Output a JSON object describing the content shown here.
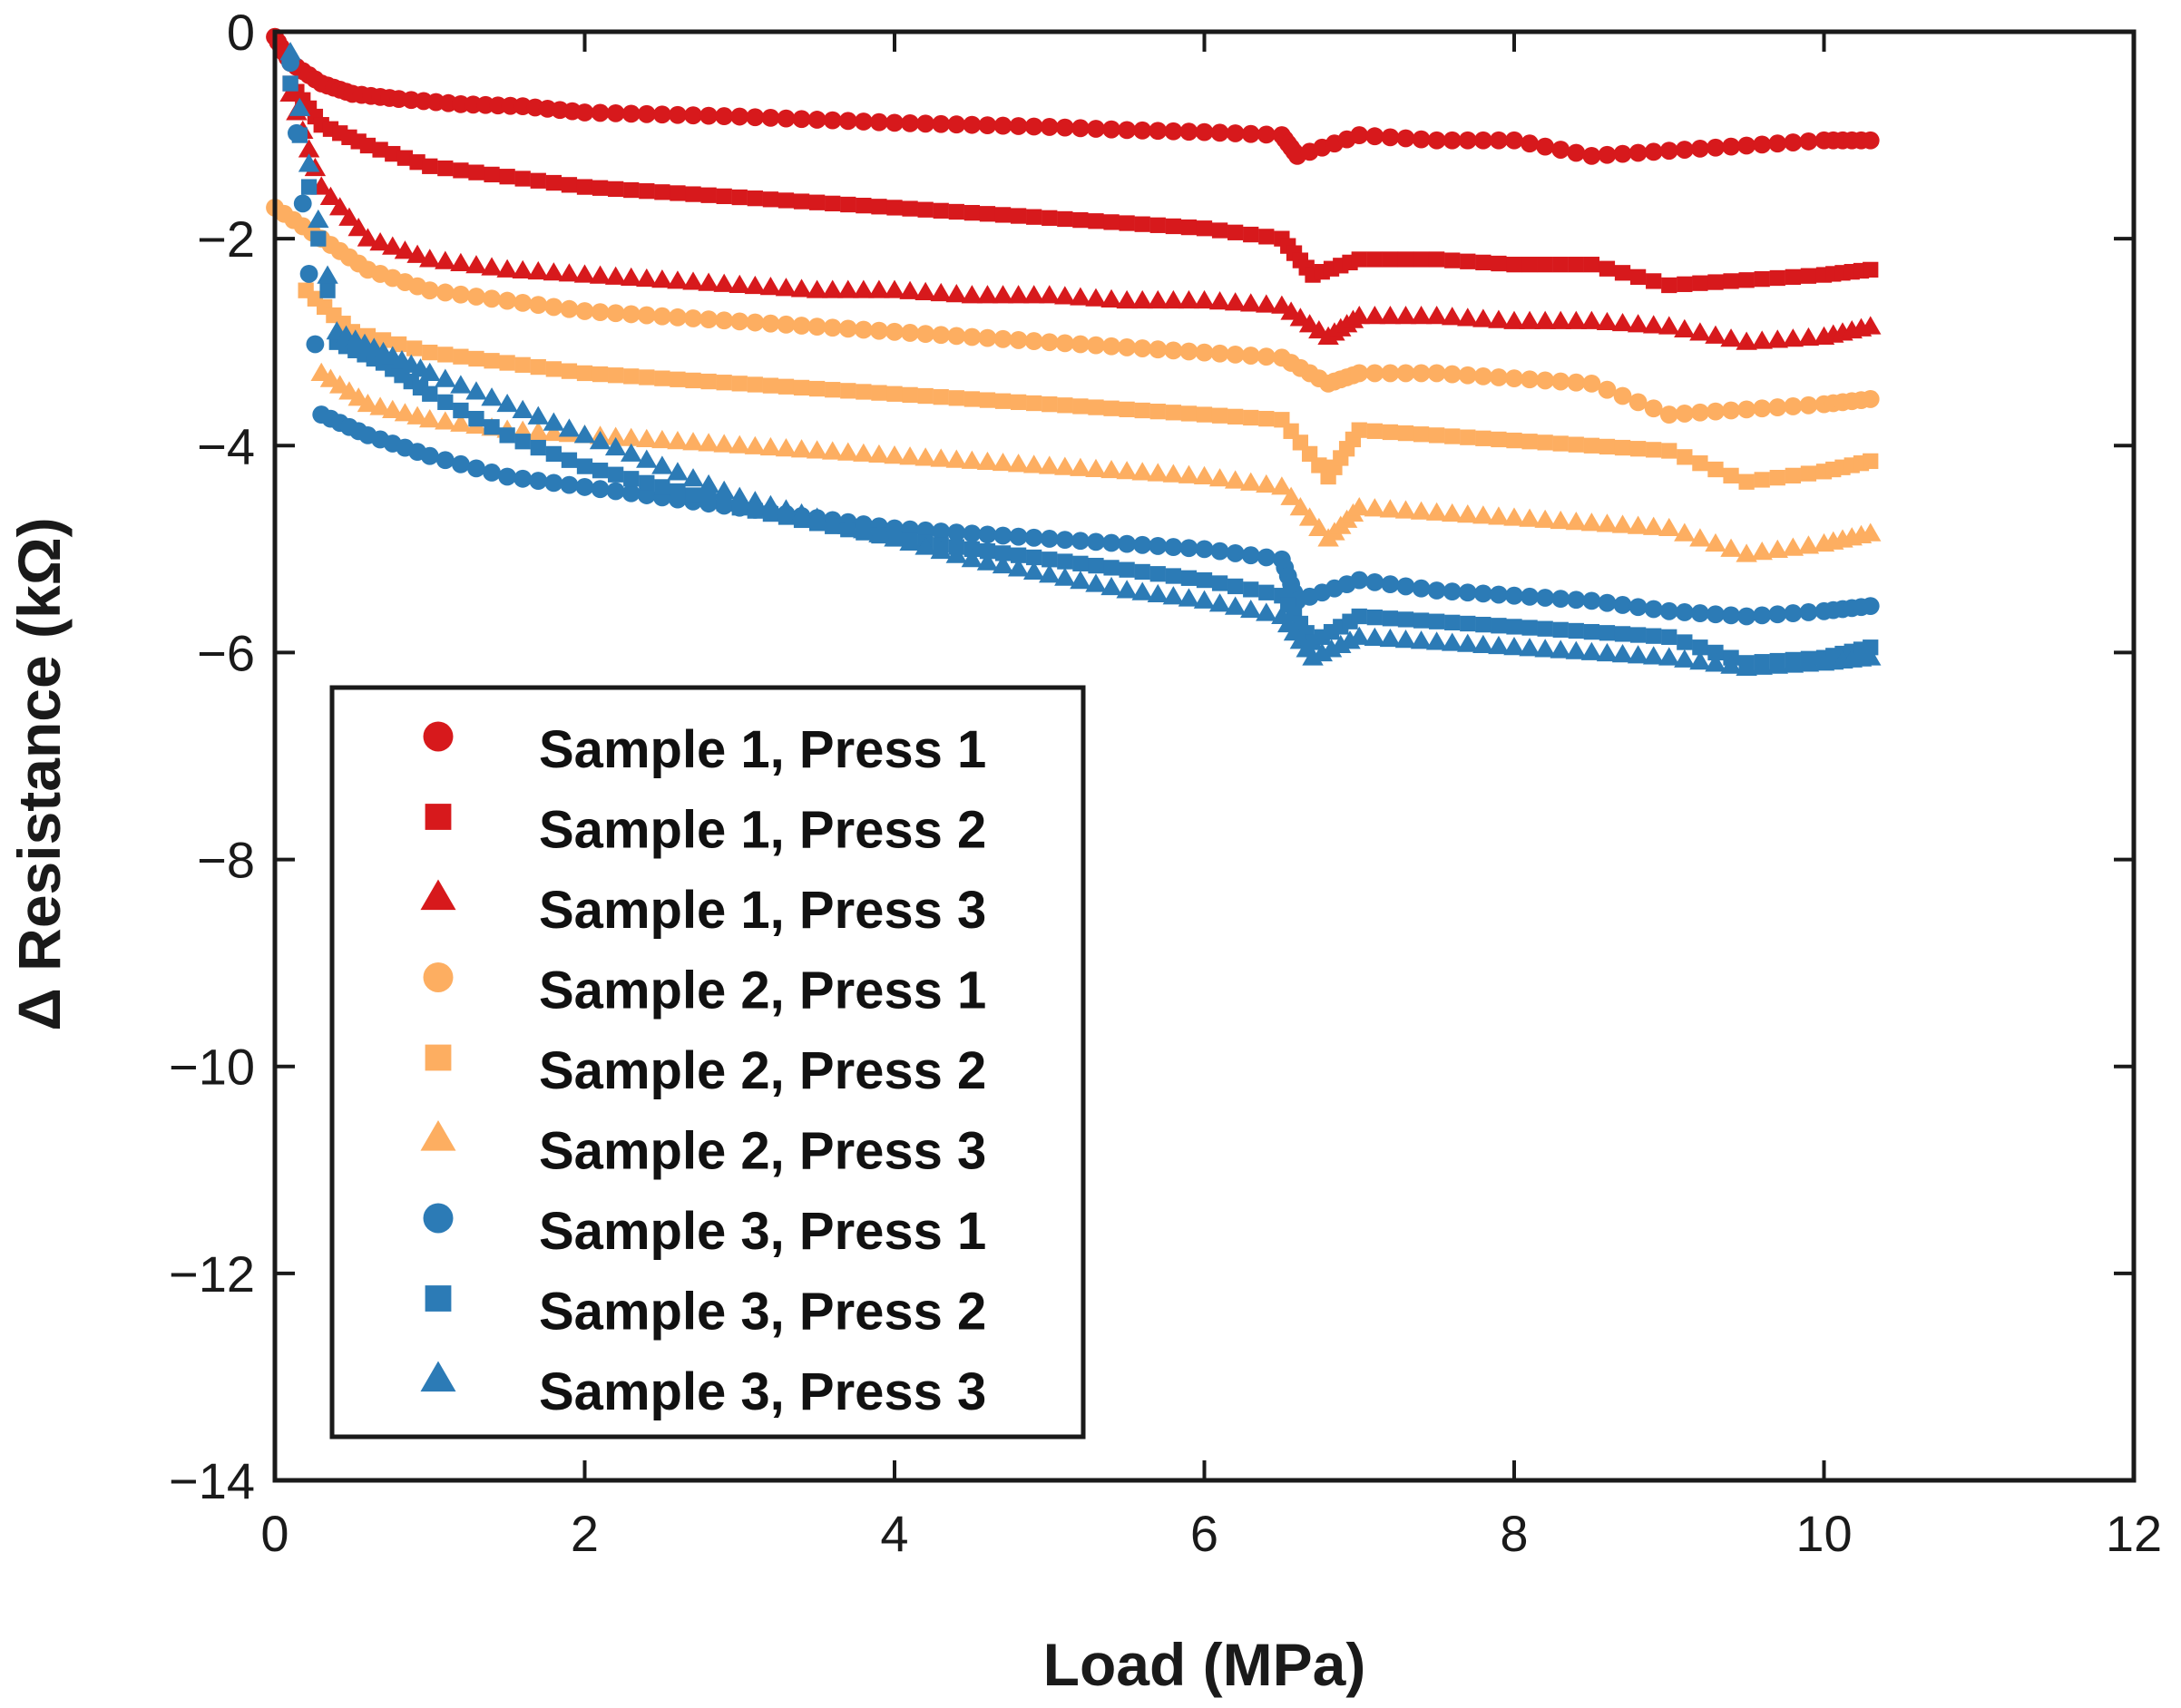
{
  "chart_data": {
    "type": "scatter",
    "title": "",
    "xlabel": "Load (MPa)",
    "ylabel": "Δ Resistance (kΩ)",
    "xlim": [
      0,
      12
    ],
    "ylim": [
      -14,
      0
    ],
    "xticks": [
      0,
      2,
      4,
      6,
      8,
      10,
      12
    ],
    "yticks": [
      0,
      -2,
      -4,
      -6,
      -8,
      -10,
      -12,
      -14
    ],
    "xtick_labels": [
      "0",
      "2",
      "4",
      "6",
      "8",
      "10",
      "12"
    ],
    "ytick_labels": [
      "0",
      "−2",
      "−4",
      "−6",
      "−8",
      "−10",
      "−12",
      "−14"
    ],
    "grid": false,
    "legend_position": "bottom-left",
    "series": [
      {
        "name": "Sample 1, Press 1",
        "color": "#d7191c",
        "marker": "circle",
        "x": [
          0.0,
          0.1,
          0.3,
          0.5,
          0.8,
          1.2,
          1.6,
          2.0,
          2.5,
          3.0,
          3.5,
          4.0,
          4.5,
          5.0,
          5.5,
          6.0,
          6.5,
          6.6,
          7.0,
          7.5,
          8.0,
          8.5,
          9.0,
          9.5,
          10.0,
          10.3
        ],
        "y": [
          -0.05,
          -0.3,
          -0.5,
          -0.6,
          -0.65,
          -0.7,
          -0.72,
          -0.78,
          -0.8,
          -0.82,
          -0.85,
          -0.88,
          -0.9,
          -0.92,
          -0.95,
          -0.97,
          -1.0,
          -1.2,
          -1.0,
          -1.05,
          -1.05,
          -1.2,
          -1.15,
          -1.1,
          -1.05,
          -1.05
        ]
      },
      {
        "name": "Sample 1, Press 2",
        "color": "#d7191c",
        "marker": "square",
        "x": [
          0.1,
          0.3,
          0.6,
          1.0,
          1.5,
          2.0,
          2.5,
          3.0,
          3.5,
          4.0,
          4.5,
          5.0,
          5.5,
          6.0,
          6.5,
          6.7,
          7.0,
          7.5,
          8.0,
          8.5,
          9.0,
          9.5,
          10.0,
          10.3
        ],
        "y": [
          -0.5,
          -0.9,
          -1.1,
          -1.3,
          -1.4,
          -1.5,
          -1.55,
          -1.6,
          -1.65,
          -1.7,
          -1.75,
          -1.8,
          -1.85,
          -1.9,
          -2.0,
          -2.35,
          -2.2,
          -2.2,
          -2.25,
          -2.25,
          -2.45,
          -2.4,
          -2.35,
          -2.3
        ]
      },
      {
        "name": "Sample 1, Press 3",
        "color": "#d7191c",
        "marker": "triangle",
        "x": [
          0.1,
          0.3,
          0.6,
          1.0,
          1.5,
          2.0,
          2.5,
          3.0,
          3.5,
          4.0,
          4.5,
          5.0,
          5.5,
          6.0,
          6.5,
          6.8,
          7.0,
          7.5,
          8.0,
          8.5,
          9.0,
          9.5,
          10.0,
          10.3
        ],
        "y": [
          -0.6,
          -1.5,
          -2.0,
          -2.2,
          -2.3,
          -2.35,
          -2.4,
          -2.45,
          -2.5,
          -2.5,
          -2.55,
          -2.55,
          -2.6,
          -2.6,
          -2.65,
          -2.95,
          -2.75,
          -2.75,
          -2.8,
          -2.8,
          -2.85,
          -3.0,
          -2.95,
          -2.85
        ]
      },
      {
        "name": "Sample 2, Press 1",
        "color": "#fdae61",
        "marker": "circle",
        "x": [
          0.0,
          0.3,
          0.6,
          1.0,
          1.5,
          2.0,
          2.5,
          3.0,
          3.5,
          4.0,
          4.5,
          5.0,
          5.5,
          6.0,
          6.5,
          6.8,
          7.0,
          7.5,
          8.0,
          8.5,
          9.0,
          9.5,
          10.0,
          10.3
        ],
        "y": [
          -1.7,
          -2.0,
          -2.3,
          -2.5,
          -2.6,
          -2.7,
          -2.75,
          -2.8,
          -2.85,
          -2.9,
          -2.95,
          -3.0,
          -3.05,
          -3.1,
          -3.15,
          -3.4,
          -3.3,
          -3.3,
          -3.35,
          -3.4,
          -3.7,
          -3.65,
          -3.6,
          -3.55
        ]
      },
      {
        "name": "Sample 2, Press 2",
        "color": "#fdae61",
        "marker": "square",
        "x": [
          0.2,
          0.5,
          1.0,
          1.5,
          2.0,
          2.5,
          3.0,
          3.5,
          4.0,
          4.5,
          5.0,
          5.5,
          6.0,
          6.5,
          6.8,
          7.0,
          7.5,
          8.0,
          8.5,
          9.0,
          9.5,
          10.0,
          10.3
        ],
        "y": [
          -2.5,
          -2.9,
          -3.1,
          -3.2,
          -3.3,
          -3.35,
          -3.4,
          -3.45,
          -3.5,
          -3.55,
          -3.6,
          -3.65,
          -3.7,
          -3.75,
          -4.3,
          -3.85,
          -3.9,
          -3.95,
          -4.0,
          -4.05,
          -4.35,
          -4.25,
          -4.15
        ]
      },
      {
        "name": "Sample 2, Press 3",
        "color": "#fdae61",
        "marker": "triangle",
        "x": [
          0.3,
          0.6,
          1.0,
          1.5,
          2.0,
          2.5,
          3.0,
          3.5,
          4.0,
          4.5,
          5.0,
          5.5,
          6.0,
          6.5,
          6.8,
          7.0,
          7.5,
          8.0,
          8.5,
          9.0,
          9.5,
          10.0,
          10.3
        ],
        "y": [
          -3.3,
          -3.6,
          -3.75,
          -3.85,
          -3.9,
          -3.95,
          -4.0,
          -4.05,
          -4.1,
          -4.15,
          -4.2,
          -4.25,
          -4.3,
          -4.4,
          -4.9,
          -4.6,
          -4.65,
          -4.7,
          -4.75,
          -4.8,
          -5.05,
          -4.95,
          -4.85
        ]
      },
      {
        "name": "Sample 3, Press 1",
        "color": "#2c7bb6",
        "marker": "circle",
        "x": [
          0.1,
          0.3,
          0.6,
          1.0,
          1.5,
          2.0,
          2.5,
          3.0,
          3.5,
          4.0,
          4.5,
          5.0,
          5.5,
          6.0,
          6.5,
          6.6,
          7.0,
          7.5,
          8.0,
          8.5,
          9.0,
          9.5,
          10.0,
          10.3
        ],
        "y": [
          -0.3,
          -3.7,
          -3.9,
          -4.1,
          -4.3,
          -4.4,
          -4.5,
          -4.6,
          -4.7,
          -4.8,
          -4.85,
          -4.9,
          -4.95,
          -5.0,
          -5.1,
          -5.5,
          -5.3,
          -5.4,
          -5.45,
          -5.5,
          -5.6,
          -5.65,
          -5.6,
          -5.55
        ]
      },
      {
        "name": "Sample 3, Press 2",
        "color": "#2c7bb6",
        "marker": "square",
        "x": [
          0.1,
          0.4,
          0.7,
          1.0,
          1.5,
          2.0,
          2.5,
          3.0,
          3.5,
          4.0,
          4.5,
          5.0,
          5.5,
          6.0,
          6.5,
          6.7,
          7.0,
          7.5,
          8.0,
          8.5,
          9.0,
          9.5,
          10.0,
          10.3
        ],
        "y": [
          -0.5,
          -3.0,
          -3.2,
          -3.5,
          -3.9,
          -4.2,
          -4.4,
          -4.6,
          -4.75,
          -4.9,
          -5.0,
          -5.1,
          -5.2,
          -5.3,
          -5.45,
          -5.9,
          -5.65,
          -5.7,
          -5.75,
          -5.8,
          -5.85,
          -6.1,
          -6.05,
          -5.95
        ]
      },
      {
        "name": "Sample 3, Press 3",
        "color": "#2c7bb6",
        "marker": "triangle",
        "x": [
          0.1,
          0.4,
          0.7,
          1.0,
          1.5,
          2.0,
          2.5,
          3.0,
          3.5,
          4.0,
          4.5,
          5.0,
          5.5,
          6.0,
          6.5,
          6.7,
          7.0,
          7.5,
          8.0,
          8.5,
          9.0,
          9.5,
          10.0,
          10.3
        ],
        "y": [
          -0.2,
          -2.9,
          -3.1,
          -3.3,
          -3.6,
          -3.9,
          -4.2,
          -4.5,
          -4.7,
          -4.9,
          -5.1,
          -5.25,
          -5.4,
          -5.5,
          -5.65,
          -6.05,
          -5.85,
          -5.9,
          -5.95,
          -6.0,
          -6.05,
          -6.15,
          -6.1,
          -6.05
        ]
      }
    ]
  }
}
